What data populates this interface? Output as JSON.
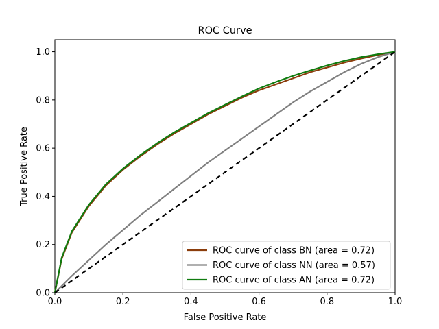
{
  "chart_data": {
    "type": "line",
    "title": "ROC Curve",
    "xlabel": "False Positive Rate",
    "ylabel": "True Positive Rate",
    "xlim": [
      0.0,
      1.0
    ],
    "ylim": [
      0.0,
      1.05
    ],
    "xticks": [
      "0.0",
      "0.2",
      "0.4",
      "0.6",
      "0.8",
      "1.0"
    ],
    "yticks": [
      "0.0",
      "0.2",
      "0.4",
      "0.6",
      "0.8",
      "1.0"
    ],
    "grid": false,
    "legend_position": "lower right",
    "series": [
      {
        "name": "ROC curve of class BN (area = 0.72)",
        "color": "#8b3d0c",
        "x": [
          0.0,
          0.02,
          0.05,
          0.1,
          0.15,
          0.2,
          0.25,
          0.3,
          0.35,
          0.4,
          0.45,
          0.5,
          0.55,
          0.6,
          0.65,
          0.7,
          0.75,
          0.8,
          0.85,
          0.9,
          0.95,
          1.0
        ],
        "y": [
          0.0,
          0.14,
          0.25,
          0.36,
          0.445,
          0.51,
          0.565,
          0.615,
          0.66,
          0.7,
          0.74,
          0.775,
          0.81,
          0.84,
          0.865,
          0.89,
          0.915,
          0.935,
          0.955,
          0.972,
          0.987,
          1.0
        ]
      },
      {
        "name": "ROC curve of class NN (area = 0.57)",
        "color": "#808080",
        "x": [
          0.0,
          0.05,
          0.1,
          0.15,
          0.2,
          0.25,
          0.3,
          0.35,
          0.4,
          0.45,
          0.5,
          0.55,
          0.6,
          0.65,
          0.7,
          0.75,
          0.8,
          0.85,
          0.9,
          0.95,
          1.0
        ],
        "y": [
          0.0,
          0.07,
          0.135,
          0.2,
          0.26,
          0.32,
          0.375,
          0.43,
          0.485,
          0.54,
          0.59,
          0.64,
          0.69,
          0.74,
          0.79,
          0.835,
          0.875,
          0.915,
          0.95,
          0.978,
          1.0
        ]
      },
      {
        "name": "ROC curve of class AN (area = 0.72)",
        "color": "#107c10",
        "x": [
          0.0,
          0.02,
          0.05,
          0.1,
          0.15,
          0.2,
          0.25,
          0.3,
          0.35,
          0.4,
          0.45,
          0.5,
          0.55,
          0.6,
          0.65,
          0.7,
          0.75,
          0.8,
          0.85,
          0.9,
          0.95,
          1.0
        ],
        "y": [
          0.0,
          0.145,
          0.255,
          0.365,
          0.45,
          0.515,
          0.57,
          0.62,
          0.665,
          0.705,
          0.745,
          0.78,
          0.815,
          0.848,
          0.875,
          0.9,
          0.922,
          0.943,
          0.962,
          0.978,
          0.99,
          1.0
        ]
      }
    ],
    "reference_line": {
      "x": [
        0.0,
        1.0
      ],
      "y": [
        0.0,
        1.0
      ],
      "color": "#000000",
      "style": "dashed"
    }
  }
}
